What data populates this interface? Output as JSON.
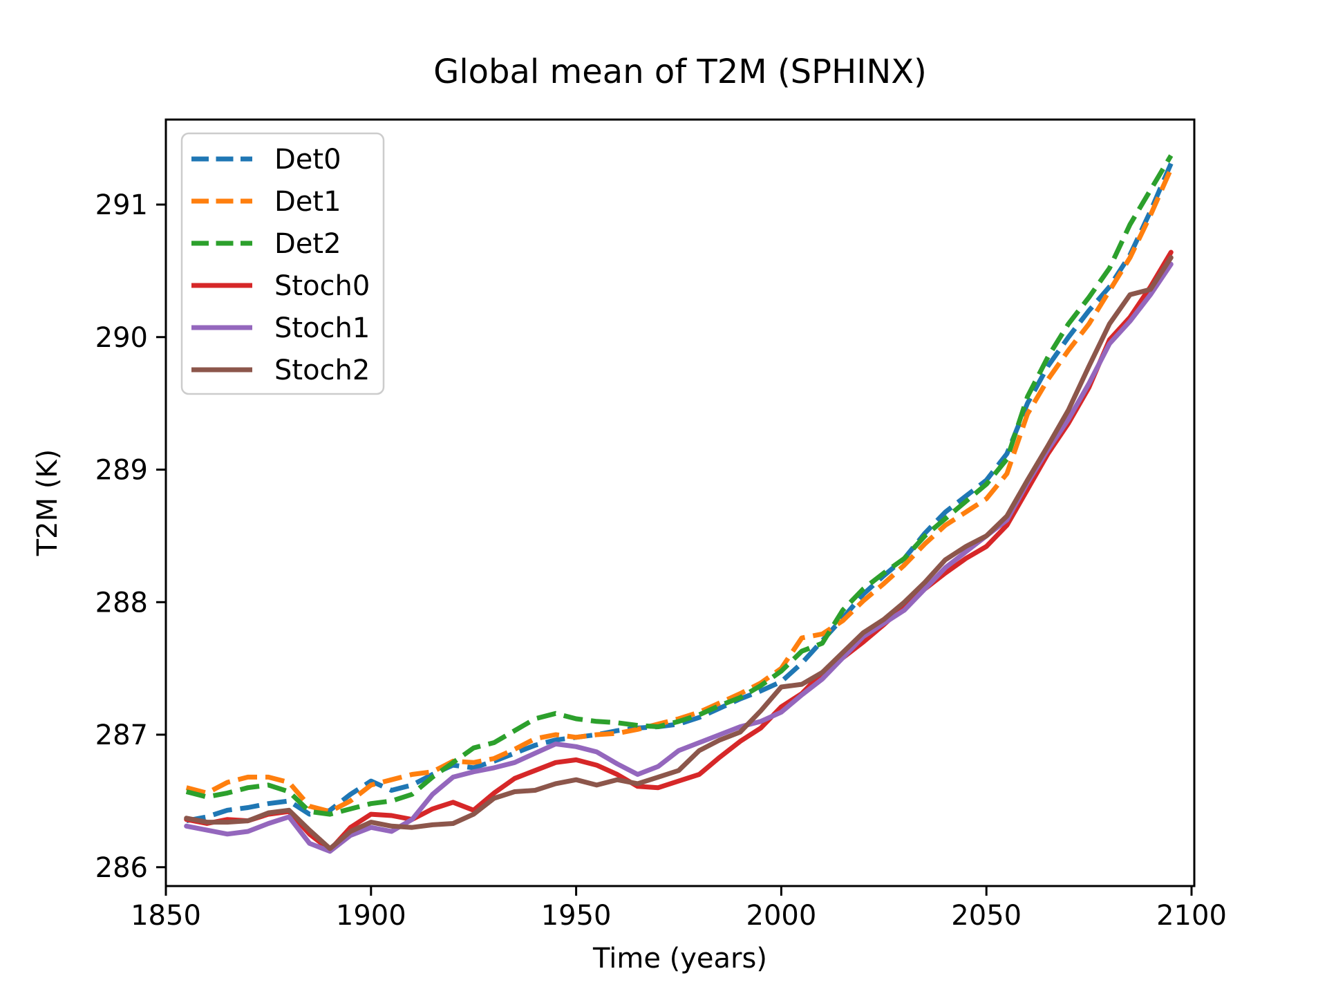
{
  "figure": {
    "background": "#ffffff",
    "spine_color": "#000000"
  },
  "chart_data": {
    "type": "line",
    "title": "Global mean of T2M (SPHINX)",
    "xlabel": "Time (years)",
    "ylabel": "T2M (K)",
    "grid": false,
    "legend_position": "upper left",
    "xlim": [
      1850,
      2100.7
    ],
    "ylim": [
      285.86,
      291.64
    ],
    "x_ticks": [
      1850,
      1900,
      1950,
      2000,
      2050,
      2100
    ],
    "y_ticks": [
      286,
      287,
      288,
      289,
      290,
      291
    ],
    "x": [
      1855,
      1860,
      1865,
      1870,
      1875,
      1880,
      1885,
      1890,
      1895,
      1900,
      1905,
      1910,
      1915,
      1920,
      1925,
      1930,
      1935,
      1940,
      1945,
      1950,
      1955,
      1960,
      1965,
      1970,
      1975,
      1980,
      1985,
      1990,
      1995,
      2000,
      2005,
      2010,
      2015,
      2020,
      2025,
      2030,
      2035,
      2040,
      2045,
      2050,
      2055,
      2060,
      2065,
      2070,
      2075,
      2080,
      2085,
      2090,
      2095
    ],
    "series": [
      {
        "name": "Det0",
        "color": "#1f77b4",
        "style": "dashed",
        "values": [
          286.35,
          286.38,
          286.43,
          286.45,
          286.48,
          286.5,
          286.4,
          286.43,
          286.55,
          286.65,
          286.58,
          286.62,
          286.7,
          286.77,
          286.75,
          286.8,
          286.86,
          286.92,
          286.96,
          286.98,
          287.0,
          287.03,
          287.05,
          287.06,
          287.08,
          287.13,
          287.2,
          287.27,
          287.33,
          287.4,
          287.54,
          287.71,
          287.88,
          288.06,
          288.2,
          288.33,
          288.52,
          288.68,
          288.8,
          288.92,
          289.12,
          289.5,
          289.78,
          290.0,
          290.2,
          290.38,
          290.62,
          290.95,
          291.31
        ]
      },
      {
        "name": "Det1",
        "color": "#ff7f0e",
        "style": "dashed",
        "values": [
          286.6,
          286.56,
          286.64,
          286.68,
          286.68,
          286.64,
          286.46,
          286.42,
          286.5,
          286.62,
          286.66,
          286.7,
          286.72,
          286.8,
          286.79,
          286.82,
          286.89,
          286.97,
          287.0,
          286.98,
          287.0,
          287.01,
          287.04,
          287.08,
          287.12,
          287.17,
          287.24,
          287.31,
          287.39,
          287.5,
          287.73,
          287.76,
          287.86,
          288.01,
          288.14,
          288.28,
          288.44,
          288.58,
          288.68,
          288.78,
          288.97,
          289.42,
          289.68,
          289.9,
          290.1,
          290.35,
          290.6,
          290.92,
          291.27
        ]
      },
      {
        "name": "Det2",
        "color": "#2ca02c",
        "style": "dashed",
        "values": [
          286.57,
          286.53,
          286.56,
          286.6,
          286.62,
          286.57,
          286.42,
          286.4,
          286.44,
          286.48,
          286.5,
          286.55,
          286.68,
          286.79,
          286.9,
          286.94,
          287.03,
          287.12,
          287.16,
          287.12,
          287.1,
          287.09,
          287.07,
          287.06,
          287.1,
          287.15,
          287.22,
          287.28,
          287.37,
          287.48,
          287.63,
          287.69,
          287.94,
          288.1,
          288.22,
          288.33,
          288.5,
          288.63,
          288.76,
          288.89,
          289.08,
          289.55,
          289.85,
          290.1,
          290.3,
          290.52,
          290.85,
          291.11,
          291.37
        ]
      },
      {
        "name": "Stoch0",
        "color": "#d62728",
        "style": "solid",
        "values": [
          286.36,
          286.33,
          286.36,
          286.35,
          286.4,
          286.42,
          286.25,
          286.13,
          286.3,
          286.4,
          286.39,
          286.36,
          286.44,
          286.49,
          286.43,
          286.56,
          286.67,
          286.73,
          286.79,
          286.81,
          286.77,
          286.7,
          286.61,
          286.6,
          286.65,
          286.7,
          286.83,
          286.95,
          287.05,
          287.21,
          287.31,
          287.47,
          287.58,
          287.7,
          287.83,
          287.97,
          288.1,
          288.22,
          288.33,
          288.42,
          288.58,
          288.85,
          289.12,
          289.35,
          289.62,
          289.98,
          290.15,
          290.38,
          290.64
        ]
      },
      {
        "name": "Stoch1",
        "color": "#9467bd",
        "style": "solid",
        "values": [
          286.31,
          286.28,
          286.25,
          286.27,
          286.33,
          286.38,
          286.18,
          286.12,
          286.24,
          286.3,
          286.27,
          286.36,
          286.55,
          286.68,
          286.72,
          286.75,
          286.79,
          286.86,
          286.93,
          286.91,
          286.87,
          286.78,
          286.7,
          286.76,
          286.88,
          286.94,
          287.0,
          287.06,
          287.1,
          287.17,
          287.3,
          287.42,
          287.58,
          287.74,
          287.84,
          287.94,
          288.1,
          288.26,
          288.38,
          288.5,
          288.62,
          288.9,
          289.15,
          289.38,
          289.65,
          289.95,
          290.12,
          290.32,
          290.55
        ]
      },
      {
        "name": "Stoch2",
        "color": "#8c564b",
        "style": "solid",
        "values": [
          286.37,
          286.34,
          286.34,
          286.35,
          286.41,
          286.43,
          286.28,
          286.14,
          286.27,
          286.34,
          286.31,
          286.3,
          286.32,
          286.33,
          286.4,
          286.52,
          286.57,
          286.58,
          286.63,
          286.66,
          286.62,
          286.66,
          286.63,
          286.68,
          286.73,
          286.88,
          286.96,
          287.02,
          287.18,
          287.36,
          287.38,
          287.47,
          287.62,
          287.77,
          287.87,
          288.0,
          288.15,
          288.32,
          288.42,
          288.5,
          288.65,
          288.92,
          289.18,
          289.45,
          289.78,
          290.1,
          290.32,
          290.36,
          290.6
        ]
      }
    ]
  }
}
